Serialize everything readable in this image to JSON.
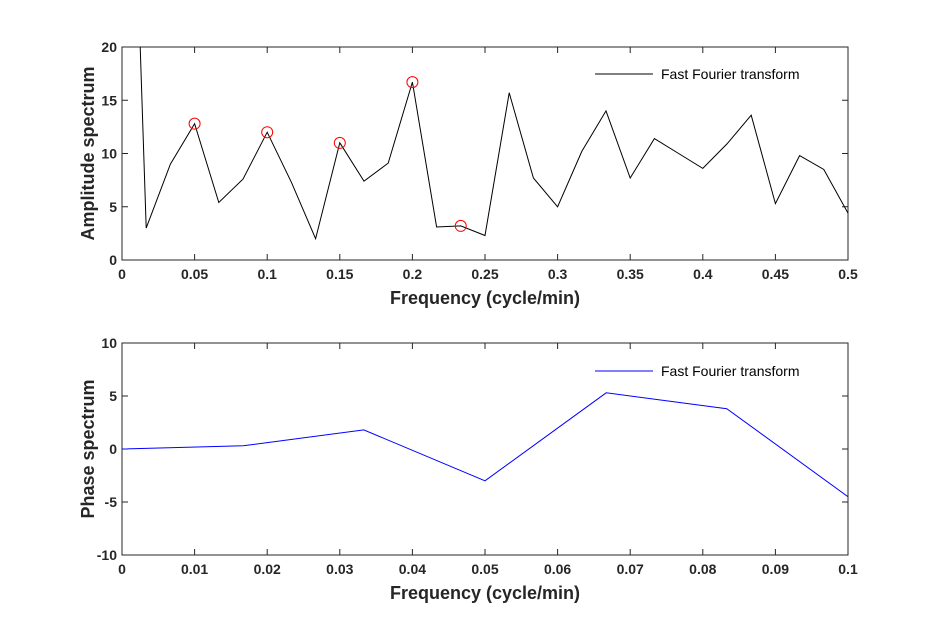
{
  "chart_data": [
    {
      "type": "line",
      "xlabel": "Frequency (cycle/min)",
      "ylabel": "Amplitude spectrum",
      "xlim": [
        0,
        0.5
      ],
      "ylim": [
        0,
        20
      ],
      "xticks": [
        0,
        0.05,
        0.1,
        0.15,
        0.2,
        0.25,
        0.3,
        0.35,
        0.4,
        0.45,
        0.5
      ],
      "xtick_labels": [
        "0",
        "0.05",
        "0.1",
        "0.15",
        "0.2",
        "0.25",
        "0.3",
        "0.35",
        "0.4",
        "0.45",
        "0.5"
      ],
      "yticks": [
        0,
        5,
        10,
        15,
        20
      ],
      "ytick_labels": [
        "0",
        "5",
        "10",
        "15",
        "20"
      ],
      "grid": false,
      "legend_position": "top-right",
      "series": [
        {
          "name": "Fast Fourier transform",
          "color": "#000000",
          "x": [
            0.0125,
            0.0167,
            0.0333,
            0.05,
            0.0667,
            0.0833,
            0.1,
            0.1167,
            0.1333,
            0.15,
            0.1667,
            0.1833,
            0.2,
            0.2167,
            0.2333,
            0.25,
            0.2667,
            0.2833,
            0.3,
            0.3167,
            0.3333,
            0.35,
            0.3667,
            0.3833,
            0.4,
            0.4167,
            0.4333,
            0.45,
            0.4667,
            0.4833,
            0.5
          ],
          "y": [
            20.0,
            3.0,
            9.0,
            12.8,
            5.4,
            7.6,
            12.0,
            7.3,
            2.0,
            11.0,
            7.4,
            9.1,
            16.7,
            3.1,
            3.2,
            2.3,
            15.7,
            7.7,
            5.0,
            10.2,
            14.0,
            7.7,
            11.4,
            10.0,
            8.6,
            10.9,
            13.6,
            5.3,
            9.8,
            8.5,
            4.4
          ]
        }
      ],
      "markers": {
        "color": "#ff0000",
        "style": "open-circle",
        "x": [
          0.05,
          0.1,
          0.15,
          0.2,
          0.2333
        ],
        "y": [
          12.8,
          12.0,
          11.0,
          16.7,
          3.2
        ]
      }
    },
    {
      "type": "line",
      "xlabel": "Frequency (cycle/min)",
      "ylabel": "Phase spectrum",
      "xlim": [
        0,
        0.1
      ],
      "ylim": [
        -10,
        10
      ],
      "xticks": [
        0,
        0.01,
        0.02,
        0.03,
        0.04,
        0.05,
        0.06,
        0.07,
        0.08,
        0.09,
        0.1
      ],
      "xtick_labels": [
        "0",
        "0.01",
        "0.02",
        "0.03",
        "0.04",
        "0.05",
        "0.06",
        "0.07",
        "0.08",
        "0.09",
        "0.1"
      ],
      "yticks": [
        -10,
        -5,
        0,
        5,
        10
      ],
      "ytick_labels": [
        "-10",
        "-5",
        "0",
        "5",
        "10"
      ],
      "grid": false,
      "legend_position": "top-right",
      "series": [
        {
          "name": "Fast Fourier transform",
          "color": "#0000ff",
          "x": [
            0,
            0.0167,
            0.0333,
            0.05,
            0.0667,
            0.0833,
            0.1
          ],
          "y": [
            0.0,
            0.3,
            1.8,
            -3.0,
            5.3,
            3.8,
            -4.5
          ]
        }
      ]
    }
  ]
}
